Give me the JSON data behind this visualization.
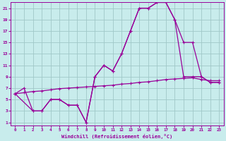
{
  "xlabel": "Windchill (Refroidissement éolien,°C)",
  "bg_color": "#c8ecec",
  "grid_color": "#a0c8c8",
  "line_color": "#990099",
  "xlim": [
    -0.5,
    23.5
  ],
  "ylim": [
    0.5,
    22
  ],
  "xticks": [
    0,
    1,
    2,
    3,
    4,
    5,
    6,
    7,
    8,
    9,
    10,
    11,
    12,
    13,
    14,
    15,
    16,
    17,
    18,
    19,
    20,
    21,
    22,
    23
  ],
  "yticks": [
    1,
    3,
    5,
    7,
    9,
    11,
    13,
    15,
    17,
    19,
    21
  ],
  "line1_x": [
    0,
    1,
    2,
    3,
    4,
    5,
    6,
    7,
    8,
    9,
    10,
    11,
    12,
    13,
    14,
    15,
    16,
    17,
    18,
    19,
    20,
    21,
    22,
    23
  ],
  "line1_y": [
    6,
    7,
    3,
    3,
    5,
    5,
    4,
    4,
    1,
    9,
    11,
    10,
    13,
    17,
    21,
    21,
    22,
    22,
    19,
    9,
    9,
    9,
    8,
    8
  ],
  "line2_x": [
    0,
    2,
    3,
    4,
    5,
    6,
    7,
    8,
    9,
    10,
    11,
    12,
    13,
    14,
    15,
    16,
    17,
    18,
    19,
    20,
    21,
    22,
    23
  ],
  "line2_y": [
    6,
    3,
    3,
    5,
    5,
    4,
    4,
    1,
    9,
    11,
    10,
    13,
    17,
    21,
    21,
    22,
    22,
    19,
    15,
    15,
    9,
    8,
    8
  ],
  "line3_x": [
    0,
    1,
    2,
    3,
    4,
    5,
    6,
    7,
    8,
    9,
    10,
    11,
    12,
    13,
    14,
    15,
    16,
    17,
    18,
    19,
    20,
    21,
    22,
    23
  ],
  "line3_y": [
    6,
    6.2,
    6.4,
    6.5,
    6.7,
    6.9,
    7.0,
    7.1,
    7.2,
    7.3,
    7.4,
    7.5,
    7.7,
    7.8,
    8.0,
    8.1,
    8.3,
    8.5,
    8.6,
    8.7,
    8.8,
    8.5,
    8.3,
    8.3
  ],
  "marker": "+"
}
